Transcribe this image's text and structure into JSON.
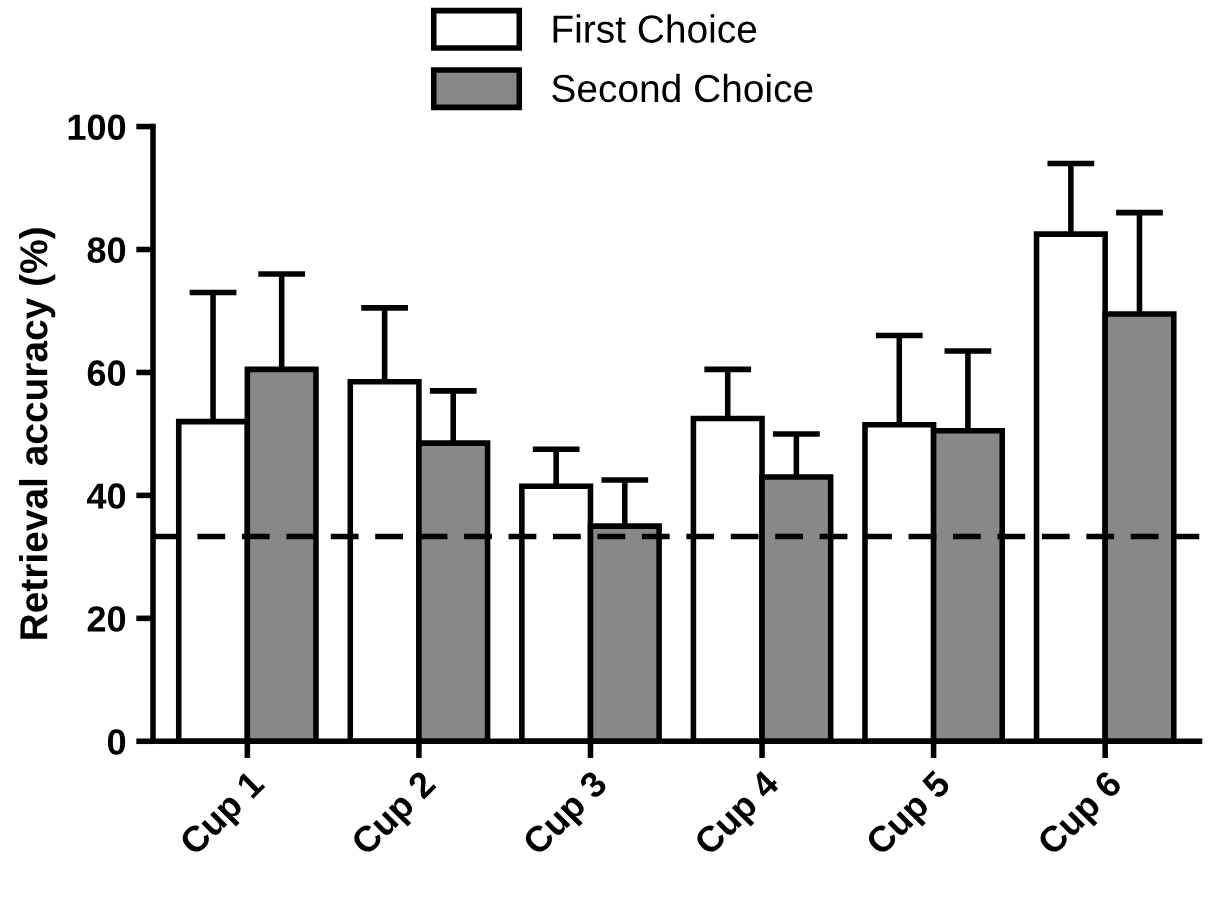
{
  "chart_data": {
    "type": "bar",
    "ylabel": "Retrieval accuracy (%)",
    "categories": [
      "Cup 1",
      "Cup 2",
      "Cup 3",
      "Cup 4",
      "Cup 5",
      "Cup 6"
    ],
    "series": [
      {
        "name": "First Choice",
        "color": "#ffffff",
        "values": [
          52,
          58.5,
          41.5,
          52.5,
          51.5,
          82.5
        ],
        "errors": [
          [
            52,
            73
          ],
          [
            58.5,
            70.5
          ],
          [
            41.5,
            47.5
          ],
          [
            52.5,
            60.5
          ],
          [
            51.5,
            66
          ],
          [
            82.5,
            94
          ]
        ]
      },
      {
        "name": "Second Choice",
        "color": "#888888",
        "values": [
          60.5,
          48.5,
          35,
          43,
          50.5,
          69.5
        ],
        "errors": [
          [
            60.5,
            76
          ],
          [
            48.5,
            57
          ],
          [
            35,
            42.5
          ],
          [
            43,
            50
          ],
          [
            50.5,
            63.5
          ],
          [
            69.5,
            86
          ]
        ]
      }
    ],
    "ylim": [
      0,
      100
    ],
    "yticks": [
      0,
      20,
      40,
      60,
      80,
      100
    ],
    "ref_lines": [
      {
        "axis": "y",
        "value": 33.3,
        "label": null,
        "color": "#000000",
        "line_style": "dashed"
      }
    ],
    "legend": "top",
    "grid": false
  }
}
